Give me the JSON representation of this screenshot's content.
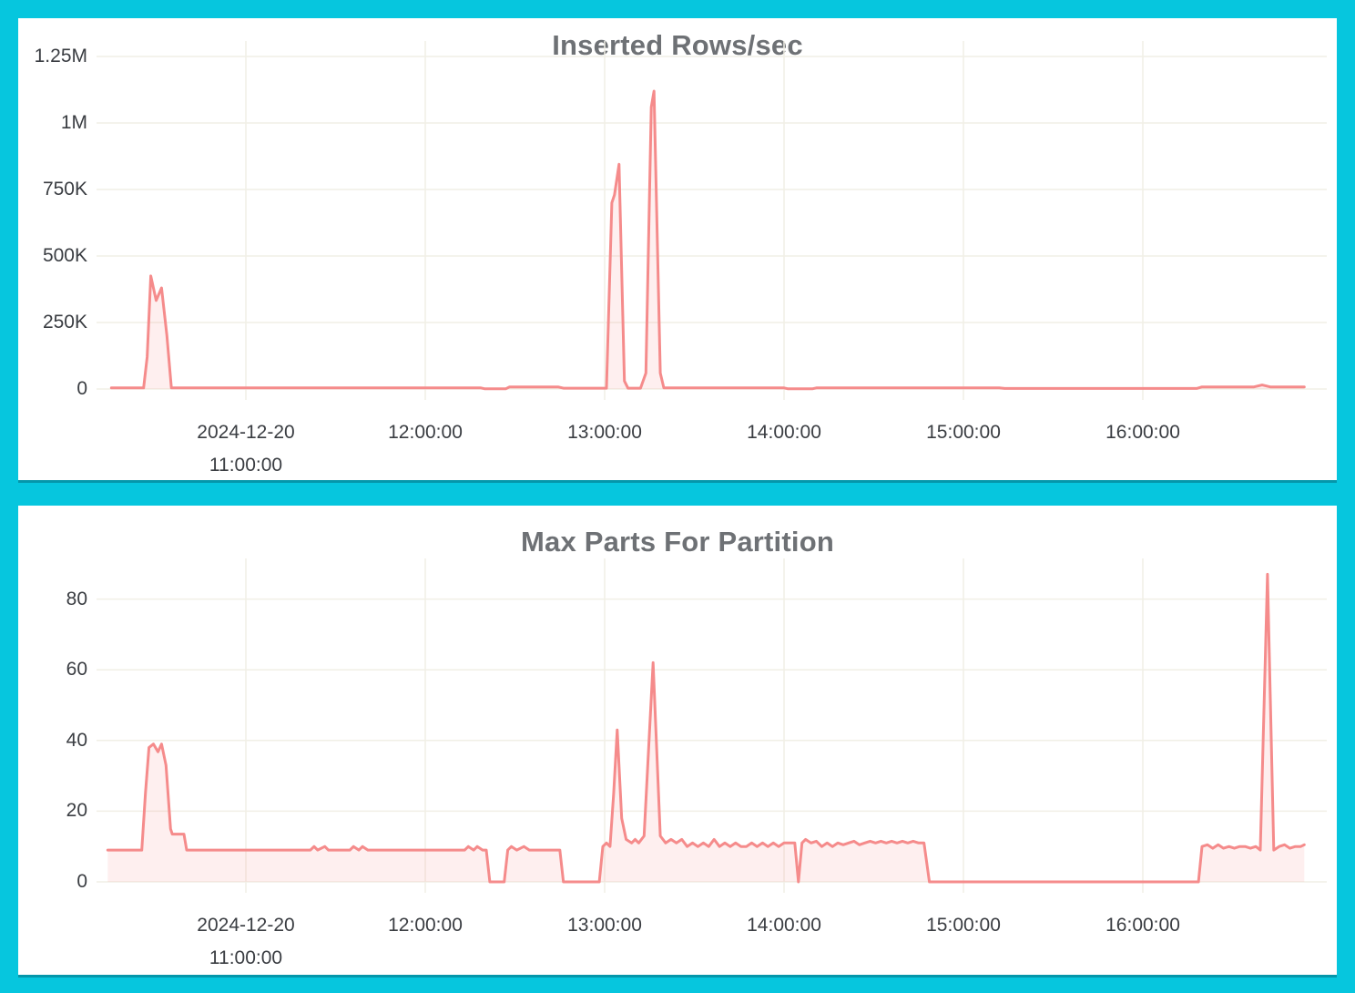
{
  "page": {
    "background_color": "#06c6de",
    "panel_color": "#ffffff",
    "grid_color": "#f1efe6",
    "axis_label_color": "#3a3d42",
    "title_color": "#6e7175",
    "series_color": "#f58b8b",
    "series_fill_color": "rgba(245,139,139,0.14)"
  },
  "chart_data": [
    {
      "type": "area",
      "title": "Inserted Rows/sec",
      "xlabel": "",
      "ylabel": "",
      "legend": "none",
      "grid": true,
      "x_unit": "time of day 2024-12-20, decimal hours",
      "x_range": [
        10.25,
        16.9
      ],
      "ylim": [
        0,
        1250000
      ],
      "y_ticks": [
        {
          "v": 0,
          "label": "0"
        },
        {
          "v": 250000,
          "label": "250K"
        },
        {
          "v": 500000,
          "label": "500K"
        },
        {
          "v": 750000,
          "label": "750K"
        },
        {
          "v": 1000000,
          "label": "1M"
        },
        {
          "v": 1250000,
          "label": "1.25M"
        }
      ],
      "x_ticks": [
        {
          "v": 11,
          "line1": "2024-12-20",
          "line2": "11:00:00"
        },
        {
          "v": 12,
          "line1": "12:00:00"
        },
        {
          "v": 13,
          "line1": "13:00:00"
        },
        {
          "v": 14,
          "line1": "14:00:00"
        },
        {
          "v": 15,
          "line1": "15:00:00"
        },
        {
          "v": 16,
          "line1": "16:00:00"
        }
      ],
      "points": [
        [
          10.25,
          4000
        ],
        [
          10.43,
          4000
        ],
        [
          10.45,
          120000
        ],
        [
          10.47,
          425000
        ],
        [
          10.5,
          333000
        ],
        [
          10.53,
          380000
        ],
        [
          10.56,
          200000
        ],
        [
          10.585,
          4000
        ],
        [
          11.5,
          4000
        ],
        [
          12.31,
          4000
        ],
        [
          12.33,
          1000
        ],
        [
          12.45,
          1000
        ],
        [
          12.47,
          8000
        ],
        [
          12.74,
          8000
        ],
        [
          12.77,
          3000
        ],
        [
          13.01,
          3000
        ],
        [
          13.04,
          700000
        ],
        [
          13.055,
          730000
        ],
        [
          13.08,
          845000
        ],
        [
          13.11,
          30000
        ],
        [
          13.13,
          3000
        ],
        [
          13.2,
          3000
        ],
        [
          13.23,
          60000
        ],
        [
          13.26,
          1060000
        ],
        [
          13.275,
          1120000
        ],
        [
          13.31,
          60000
        ],
        [
          13.33,
          4000
        ],
        [
          14.0,
          4000
        ],
        [
          14.02,
          1000
        ],
        [
          14.16,
          1000
        ],
        [
          14.18,
          4000
        ],
        [
          15.2,
          4000
        ],
        [
          15.23,
          2000
        ],
        [
          16.3,
          2000
        ],
        [
          16.33,
          8000
        ],
        [
          16.62,
          8000
        ],
        [
          16.665,
          15000
        ],
        [
          16.71,
          8000
        ],
        [
          16.9,
          8000
        ]
      ]
    },
    {
      "type": "area",
      "title": "Max Parts For Partition",
      "xlabel": "",
      "ylabel": "",
      "legend": "none",
      "grid": true,
      "x_unit": "time of day 2024-12-20, decimal hours",
      "x_range": [
        10.23,
        16.9
      ],
      "ylim": [
        0,
        90
      ],
      "y_ticks": [
        {
          "v": 0,
          "label": "0"
        },
        {
          "v": 20,
          "label": "20"
        },
        {
          "v": 40,
          "label": "40"
        },
        {
          "v": 60,
          "label": "60"
        },
        {
          "v": 80,
          "label": "80"
        }
      ],
      "x_ticks": [
        {
          "v": 11,
          "line1": "2024-12-20",
          "line2": "11:00:00"
        },
        {
          "v": 12,
          "line1": "12:00:00"
        },
        {
          "v": 13,
          "line1": "13:00:00"
        },
        {
          "v": 14,
          "line1": "14:00:00"
        },
        {
          "v": 15,
          "line1": "15:00:00"
        },
        {
          "v": 16,
          "line1": "16:00:00"
        }
      ],
      "points": [
        [
          10.23,
          9
        ],
        [
          10.42,
          9
        ],
        [
          10.44,
          25
        ],
        [
          10.46,
          38
        ],
        [
          10.485,
          39
        ],
        [
          10.51,
          36.8
        ],
        [
          10.53,
          39
        ],
        [
          10.555,
          33
        ],
        [
          10.58,
          15
        ],
        [
          10.59,
          13.5
        ],
        [
          10.655,
          13.5
        ],
        [
          10.67,
          9
        ],
        [
          11.0,
          9
        ],
        [
          11.36,
          9
        ],
        [
          11.38,
          10
        ],
        [
          11.4,
          9
        ],
        [
          11.44,
          10
        ],
        [
          11.46,
          9
        ],
        [
          11.58,
          9
        ],
        [
          11.6,
          10
        ],
        [
          11.63,
          9
        ],
        [
          11.65,
          10
        ],
        [
          11.68,
          9
        ],
        [
          12.22,
          9
        ],
        [
          12.24,
          10
        ],
        [
          12.27,
          9
        ],
        [
          12.29,
          10
        ],
        [
          12.32,
          9
        ],
        [
          12.34,
          9
        ],
        [
          12.36,
          0
        ],
        [
          12.44,
          0
        ],
        [
          12.46,
          9
        ],
        [
          12.48,
          10
        ],
        [
          12.51,
          9
        ],
        [
          12.55,
          10
        ],
        [
          12.58,
          9
        ],
        [
          12.75,
          9
        ],
        [
          12.77,
          0
        ],
        [
          12.97,
          0
        ],
        [
          12.99,
          10
        ],
        [
          13.01,
          11
        ],
        [
          13.03,
          10
        ],
        [
          13.05,
          25
        ],
        [
          13.07,
          43
        ],
        [
          13.095,
          18
        ],
        [
          13.12,
          12
        ],
        [
          13.15,
          11
        ],
        [
          13.17,
          12
        ],
        [
          13.19,
          11
        ],
        [
          13.22,
          13
        ],
        [
          13.27,
          62
        ],
        [
          13.31,
          13
        ],
        [
          13.34,
          11
        ],
        [
          13.37,
          12
        ],
        [
          13.4,
          11
        ],
        [
          13.43,
          12
        ],
        [
          13.46,
          10
        ],
        [
          13.49,
          11
        ],
        [
          13.52,
          10
        ],
        [
          13.55,
          11
        ],
        [
          13.58,
          10
        ],
        [
          13.61,
          12
        ],
        [
          13.64,
          10
        ],
        [
          13.67,
          11
        ],
        [
          13.7,
          10
        ],
        [
          13.73,
          11
        ],
        [
          13.76,
          10
        ],
        [
          13.79,
          10
        ],
        [
          13.82,
          11
        ],
        [
          13.85,
          10
        ],
        [
          13.88,
          11
        ],
        [
          13.91,
          10
        ],
        [
          13.94,
          11
        ],
        [
          13.97,
          10
        ],
        [
          14.0,
          11
        ],
        [
          14.03,
          11
        ],
        [
          14.06,
          11
        ],
        [
          14.08,
          0
        ],
        [
          14.1,
          11
        ],
        [
          14.12,
          12
        ],
        [
          14.15,
          11
        ],
        [
          14.18,
          11.5
        ],
        [
          14.21,
          10
        ],
        [
          14.24,
          11
        ],
        [
          14.27,
          10
        ],
        [
          14.3,
          11
        ],
        [
          14.33,
          10.5
        ],
        [
          14.36,
          11
        ],
        [
          14.39,
          11.5
        ],
        [
          14.42,
          10.5
        ],
        [
          14.45,
          11
        ],
        [
          14.48,
          11.5
        ],
        [
          14.51,
          11
        ],
        [
          14.54,
          11.5
        ],
        [
          14.57,
          11
        ],
        [
          14.6,
          11.5
        ],
        [
          14.63,
          11
        ],
        [
          14.66,
          11.5
        ],
        [
          14.69,
          11
        ],
        [
          14.72,
          11.5
        ],
        [
          14.75,
          11
        ],
        [
          14.78,
          11
        ],
        [
          14.81,
          0
        ],
        [
          16.31,
          0
        ],
        [
          16.33,
          10
        ],
        [
          16.36,
          10.5
        ],
        [
          16.39,
          9.5
        ],
        [
          16.42,
          10.5
        ],
        [
          16.45,
          9.5
        ],
        [
          16.48,
          10
        ],
        [
          16.51,
          9.5
        ],
        [
          16.54,
          10
        ],
        [
          16.57,
          10
        ],
        [
          16.6,
          9.5
        ],
        [
          16.63,
          10
        ],
        [
          16.655,
          9
        ],
        [
          16.695,
          87
        ],
        [
          16.73,
          9
        ],
        [
          16.76,
          10
        ],
        [
          16.79,
          10.5
        ],
        [
          16.82,
          9.5
        ],
        [
          16.85,
          10
        ],
        [
          16.88,
          10
        ],
        [
          16.9,
          10.5
        ]
      ]
    }
  ]
}
